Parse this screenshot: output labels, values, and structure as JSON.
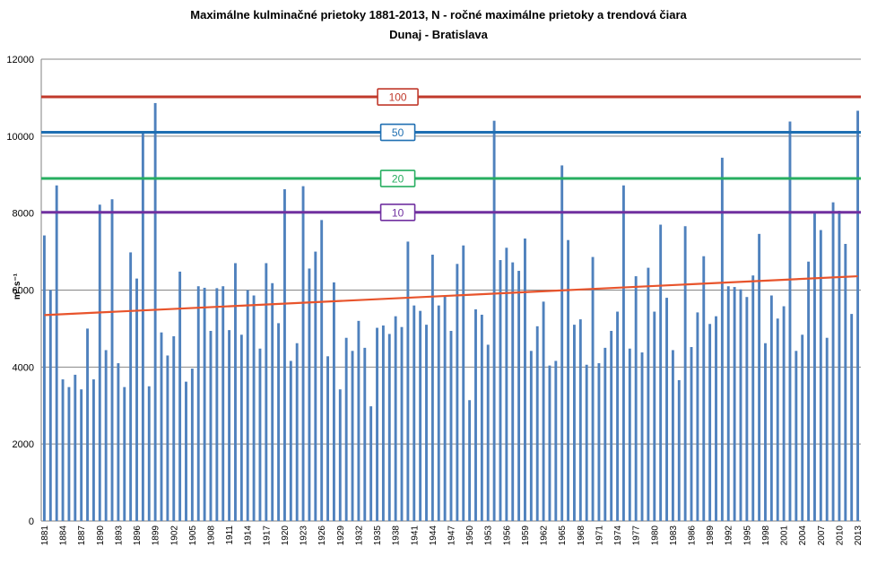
{
  "chart_data": {
    "type": "bar",
    "title": "Maximálne kulminačné prietoky 1881-2013, N - ročné maximálne prietoky a trendová čiara",
    "subtitle": "Dunaj - Bratislava",
    "ylabel": "m³.s⁻¹",
    "ylim": [
      0,
      12000
    ],
    "yticks": [
      0,
      2000,
      4000,
      6000,
      8000,
      10000,
      12000
    ],
    "grid": true,
    "bar_color": "#4f81bd",
    "start_year": 1881,
    "end_year": 2013,
    "xtick_step": 3,
    "values": [
      7420,
      6000,
      8720,
      3680,
      3480,
      3800,
      3420,
      5000,
      3680,
      8220,
      4440,
      8360,
      4100,
      3480,
      6980,
      6300,
      10100,
      3500,
      10860,
      4900,
      4300,
      4800,
      6480,
      3620,
      3960,
      6100,
      6060,
      4940,
      6050,
      6100,
      4960,
      6700,
      4840,
      6000,
      5860,
      4480,
      6700,
      6180,
      5140,
      8620,
      4160,
      4620,
      8700,
      6560,
      7000,
      7820,
      4280,
      6200,
      3420,
      4760,
      4420,
      5200,
      4500,
      2980,
      5020,
      5080,
      4860,
      5320,
      5040,
      7260,
      5600,
      5460,
      5100,
      6920,
      5600,
      5840,
      4940,
      6680,
      7160,
      3140,
      5500,
      5360,
      4580,
      10400,
      6780,
      7100,
      6720,
      6500,
      7340,
      4420,
      5060,
      5700,
      4040,
      4160,
      9240,
      7300,
      5100,
      5240,
      4060,
      6860,
      4100,
      4500,
      4940,
      5440,
      8720,
      4480,
      6360,
      4380,
      6580,
      5440,
      7700,
      5800,
      4440,
      3660,
      7660,
      4520,
      5420,
      6880,
      5120,
      5320,
      9440,
      6100,
      6080,
      6020,
      5820,
      6380,
      7460,
      4620,
      5860,
      5260,
      5580,
      10380,
      4420,
      4840,
      6740,
      8020,
      7560,
      4760,
      8280,
      8060,
      7200,
      5380,
      10660
    ],
    "trend": {
      "name": "Trendová čiara",
      "color": "#e8542c",
      "start": 5350,
      "end": 6360
    },
    "reference_lines": [
      {
        "label": "100",
        "value": 11020,
        "color": "#c0392b"
      },
      {
        "label": "50",
        "value": 10100,
        "color": "#1f6fb2"
      },
      {
        "label": "20",
        "value": 8900,
        "color": "#27ae60"
      },
      {
        "label": "10",
        "value": 8020,
        "color": "#7030a0"
      }
    ]
  }
}
